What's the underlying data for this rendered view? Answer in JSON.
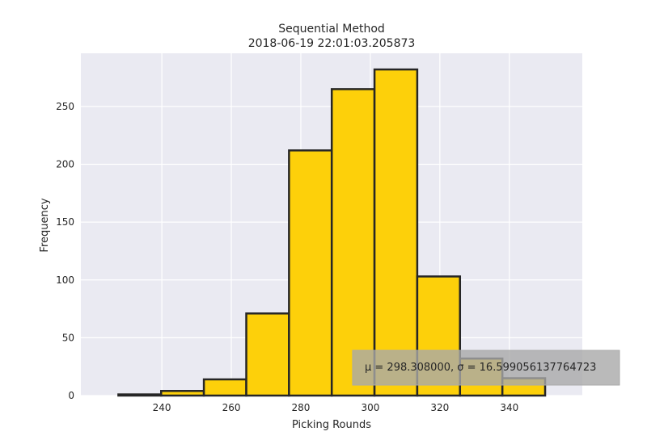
{
  "colors": {
    "plot_background": "#EAEAF2",
    "grid": "#FFFFFF",
    "bar_fill": "#FDD00A",
    "bar_edge": "#262626",
    "annotation_box": "#A9A9A9"
  },
  "chart_data": {
    "type": "bar",
    "title": "Sequential Method",
    "subtitle": "2018-06-19 22:01:03.205873",
    "xlabel": "Picking Rounds",
    "ylabel": "Frequency",
    "bins": [
      {
        "start": 227.5,
        "end": 239.8,
        "value": 1
      },
      {
        "start": 239.8,
        "end": 252.1,
        "value": 4
      },
      {
        "start": 252.1,
        "end": 264.3,
        "value": 14
      },
      {
        "start": 264.3,
        "end": 276.6,
        "value": 71
      },
      {
        "start": 276.6,
        "end": 288.9,
        "value": 212
      },
      {
        "start": 288.9,
        "end": 301.2,
        "value": 265
      },
      {
        "start": 301.2,
        "end": 313.5,
        "value": 282
      },
      {
        "start": 313.5,
        "end": 325.8,
        "value": 103
      },
      {
        "start": 325.8,
        "end": 338.0,
        "value": 32
      },
      {
        "start": 338.0,
        "end": 350.3,
        "value": 15
      }
    ],
    "xlim": [
      216.7,
      361.0
    ],
    "ylim": [
      0,
      296
    ],
    "xticks": [
      240,
      260,
      280,
      300,
      320,
      340
    ],
    "yticks": [
      0,
      50,
      100,
      150,
      200,
      250
    ],
    "grid": true,
    "annotation": {
      "text": "μ = 298.308000,  σ = 16.599056137764723",
      "placement": "bottom-right"
    }
  }
}
